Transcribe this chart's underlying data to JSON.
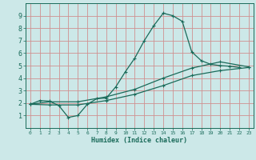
{
  "title": "",
  "xlabel": "Humidex (Indice chaleur)",
  "ylabel": "",
  "bg_color": "#cce8e8",
  "grid_color": "#d09090",
  "line_color": "#1a6b5a",
  "xlim": [
    -0.5,
    23.5
  ],
  "ylim": [
    0,
    10
  ],
  "xticks": [
    0,
    1,
    2,
    3,
    4,
    5,
    6,
    7,
    8,
    9,
    10,
    11,
    12,
    13,
    14,
    15,
    16,
    17,
    18,
    19,
    20,
    21,
    22,
    23
  ],
  "yticks": [
    1,
    2,
    3,
    4,
    5,
    6,
    7,
    8,
    9
  ],
  "line1_x": [
    0,
    1,
    2,
    3,
    4,
    5,
    6,
    7,
    8,
    9,
    10,
    11,
    12,
    13,
    14,
    15,
    16,
    17,
    18,
    19,
    20,
    21,
    22
  ],
  "line1_y": [
    1.9,
    2.2,
    2.15,
    1.8,
    0.85,
    1.0,
    1.9,
    2.35,
    2.4,
    3.3,
    4.5,
    5.6,
    7.0,
    8.2,
    9.2,
    9.0,
    8.55,
    6.1,
    5.4,
    5.1,
    5.0,
    4.95,
    4.85
  ],
  "line2_x": [
    0,
    2,
    5,
    8,
    11,
    14,
    17,
    20,
    23
  ],
  "line2_y": [
    1.9,
    2.1,
    2.1,
    2.5,
    3.1,
    4.0,
    4.8,
    5.3,
    4.9
  ],
  "line3_x": [
    0,
    2,
    5,
    8,
    11,
    14,
    17,
    20,
    23
  ],
  "line3_y": [
    1.9,
    1.85,
    1.85,
    2.2,
    2.7,
    3.4,
    4.2,
    4.6,
    4.85
  ]
}
